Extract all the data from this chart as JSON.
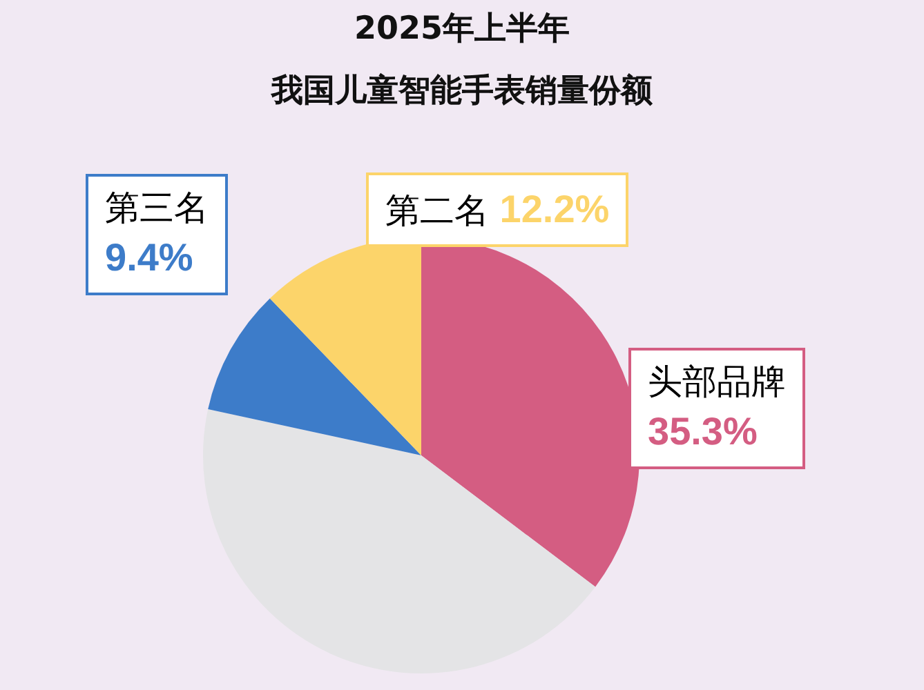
{
  "chart_data": {
    "type": "pie",
    "title": "2025年上半年",
    "subtitle": "我国儿童智能手表销量份额",
    "categories": [
      "头部品牌",
      null,
      "第三名",
      "第二名"
    ],
    "values": [
      35.3,
      43.1,
      9.4,
      12.2
    ],
    "colors": [
      "#d45d82",
      "#e4e4e6",
      "#3d7cc9",
      "#fcd46a"
    ],
    "value_labels": [
      "35.3%",
      null,
      "9.4%",
      "12.2%"
    ]
  }
}
